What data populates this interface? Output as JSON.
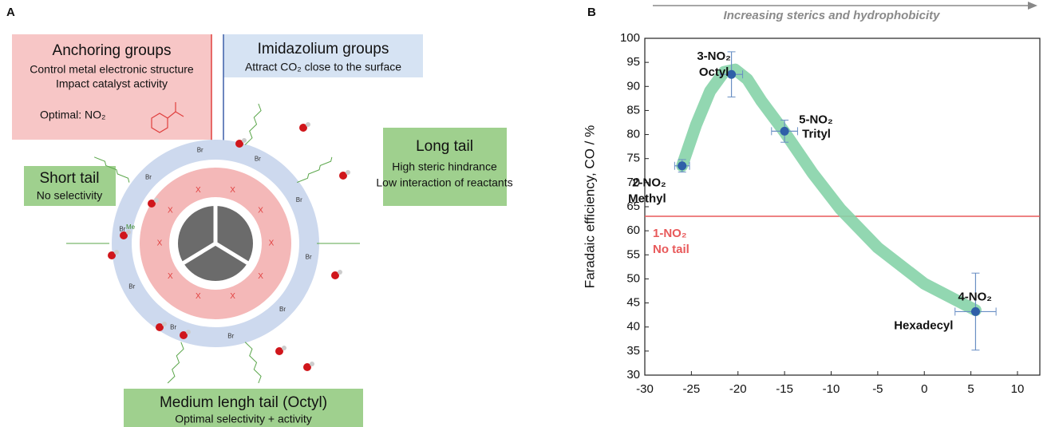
{
  "panel_a": {
    "label": "A",
    "anchoring": {
      "title": "Anchoring groups",
      "lines": [
        "Control metal electronic structure",
        "Impact catalyst activity"
      ],
      "optimal": "Optimal: NO₂"
    },
    "imidazolium": {
      "title": "Imidazolium groups",
      "lines": [
        "Attract CO₂ close to the surface"
      ]
    },
    "short_tail": {
      "title": "Short tail",
      "lines": [
        "No selectivity"
      ]
    },
    "long_tail": {
      "title": "Long tail",
      "lines": [
        "High steric hindrance",
        "Low interaction of reactants"
      ]
    },
    "medium_tail": {
      "title": "Medium lengh tail (Octyl)",
      "lines": [
        "Optimal selectivity + activity"
      ]
    },
    "ring_labels": {
      "anchor": "X",
      "counterion": "Br",
      "methyl": "Me"
    }
  },
  "chart_data": {
    "type": "scatter",
    "panel_label": "B",
    "arrow_label": "Increasing sterics and hydrophobicity",
    "y_label": "Faradaic efficiency, CO / %",
    "xlim": [
      -30,
      12.4
    ],
    "ylim": [
      30,
      100
    ],
    "xticks": [
      -30,
      -25,
      -20,
      -15,
      -10,
      -5,
      0,
      5,
      10
    ],
    "yticks": [
      30,
      35,
      40,
      45,
      50,
      55,
      60,
      65,
      70,
      75,
      80,
      85,
      90,
      95,
      100
    ],
    "series": [
      {
        "color": "#2f5fa8",
        "x": [
          -26,
          -20.7,
          -15,
          5.5
        ],
        "values": [
          73.5,
          92.5,
          80.7,
          43.2
        ],
        "xerr": [
          0.8,
          1.2,
          1.4,
          2.2
        ],
        "yerr": [
          1.3,
          4.7,
          2.3,
          8
        ],
        "labels": [
          [
            "2-NO₂",
            "Methyl"
          ],
          [
            "3-NO₂",
            "Octyl"
          ],
          [
            "5-NO₂",
            "Trityl"
          ],
          [
            "4-NO₂",
            "Hexadecyl"
          ]
        ]
      }
    ],
    "trend": {
      "color": "#86d3a9",
      "x": [
        -26,
        -24.5,
        -23,
        -21.5,
        -20.3,
        -19,
        -17.5,
        -15,
        -12,
        -9,
        -5,
        0,
        5.5
      ],
      "values": [
        73.5,
        82,
        89,
        93,
        93.5,
        91.5,
        87,
        80.5,
        72,
        64.5,
        56.5,
        49,
        43.5
      ]
    },
    "reference_line": {
      "value": 63,
      "color": "#e8595a",
      "labels": [
        "1-NO₂",
        "No tail"
      ]
    }
  }
}
